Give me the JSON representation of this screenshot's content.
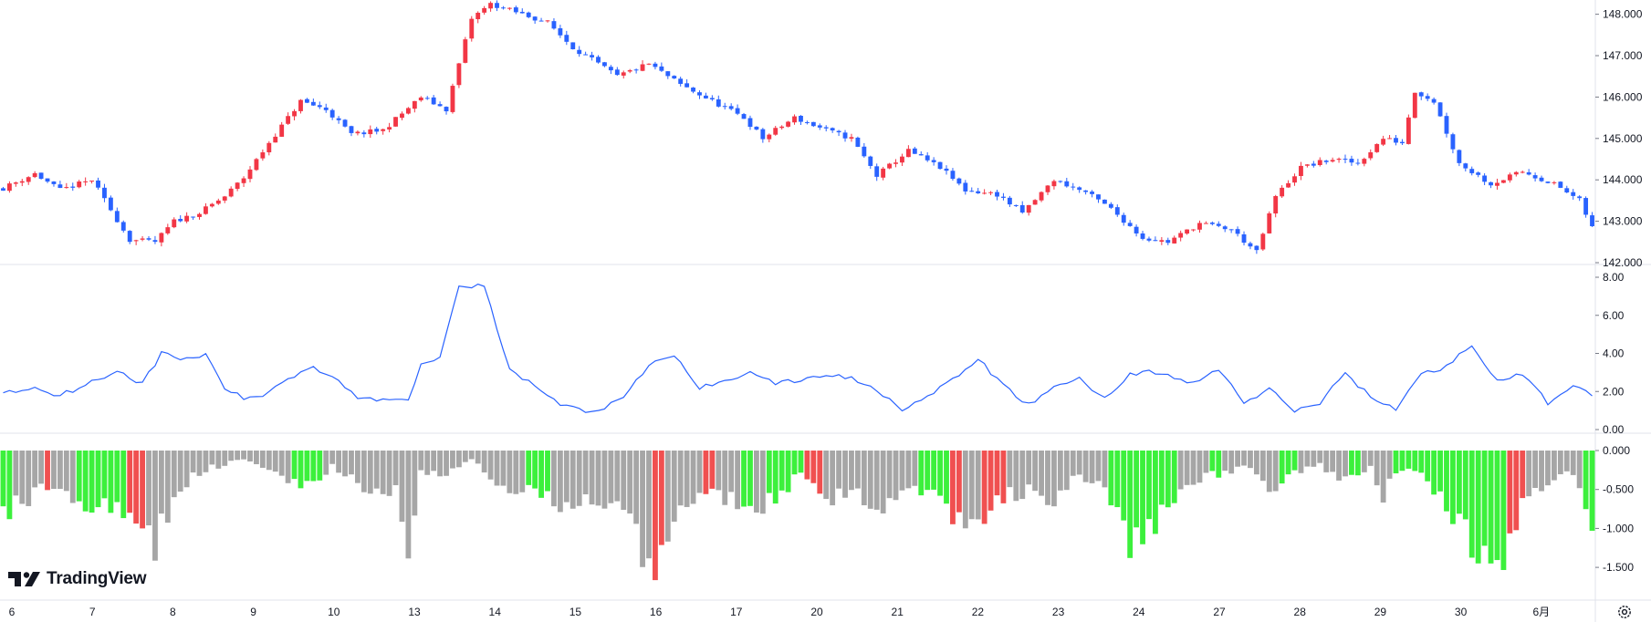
{
  "brand": {
    "name": "TradingView"
  },
  "icons": {
    "logo": "tradingview-logo-icon",
    "settings": "settings-icon"
  },
  "colors": {
    "up": "#f23645",
    "down": "#2962ff",
    "osc_line": "#2962ff",
    "hist_gray": "#a6a6a6",
    "hist_green": "#3cf03c",
    "hist_red": "#f05050",
    "grid": "#e0e3eb",
    "text": "#131722"
  },
  "chart_data": [
    {
      "type": "candlestick",
      "title": "",
      "xlabel": "",
      "ylabel": "",
      "ylim": [
        142.0,
        148.3
      ],
      "yticks": [
        "148.000",
        "147.000",
        "146.000",
        "145.000",
        "144.000",
        "143.000",
        "142.000"
      ],
      "y_axis_position": "right",
      "x_tick_labels": [
        "6",
        "7",
        "8",
        "9",
        "10",
        "13",
        "14",
        "15",
        "16",
        "17",
        "20",
        "21",
        "22",
        "23",
        "24",
        "27",
        "28",
        "29",
        "30",
        "6月"
      ],
      "close_path": [
        [
          0,
          143.8
        ],
        [
          5,
          144.15
        ],
        [
          9,
          143.75
        ],
        [
          14,
          144.0
        ],
        [
          20,
          142.55
        ],
        [
          24,
          142.5
        ],
        [
          27,
          143.0
        ],
        [
          31,
          143.2
        ],
        [
          35,
          143.6
        ],
        [
          38,
          144.05
        ],
        [
          42,
          144.9
        ],
        [
          47,
          145.9
        ],
        [
          51,
          145.7
        ],
        [
          55,
          145.1
        ],
        [
          60,
          145.2
        ],
        [
          66,
          146.0
        ],
        [
          70,
          145.7
        ],
        [
          74,
          147.9
        ],
        [
          77,
          148.25
        ],
        [
          82,
          148.0
        ],
        [
          86,
          147.8
        ],
        [
          90,
          147.2
        ],
        [
          97,
          146.5
        ],
        [
          102,
          146.8
        ],
        [
          107,
          146.3
        ],
        [
          112,
          145.9
        ],
        [
          117,
          145.5
        ],
        [
          120,
          145.0
        ],
        [
          125,
          145.5
        ],
        [
          130,
          145.2
        ],
        [
          134,
          145.0
        ],
        [
          138,
          144.1
        ],
        [
          143,
          144.7
        ],
        [
          148,
          144.3
        ],
        [
          152,
          143.75
        ],
        [
          157,
          143.65
        ],
        [
          161,
          143.2
        ],
        [
          166,
          144.0
        ],
        [
          171,
          143.7
        ],
        [
          175,
          143.3
        ],
        [
          180,
          142.6
        ],
        [
          184,
          142.5
        ],
        [
          189,
          142.95
        ],
        [
          194,
          142.8
        ],
        [
          198,
          142.25
        ],
        [
          201,
          143.6
        ],
        [
          205,
          144.3
        ],
        [
          210,
          144.5
        ],
        [
          214,
          144.4
        ],
        [
          218,
          145.0
        ],
        [
          221,
          144.9
        ],
        [
          223,
          146.15
        ],
        [
          226,
          145.9
        ],
        [
          230,
          144.4
        ],
        [
          235,
          143.9
        ],
        [
          240,
          144.2
        ],
        [
          245,
          143.9
        ],
        [
          249,
          143.5
        ],
        [
          251,
          142.85
        ]
      ]
    },
    {
      "type": "line",
      "title": "",
      "xlabel": "",
      "ylabel": "",
      "ylim": [
        0.0,
        8.0
      ],
      "yticks": [
        "8.00",
        "6.00",
        "4.00",
        "2.00",
        "0.00"
      ],
      "y_axis_position": "right",
      "x": [
        0,
        5,
        9,
        14,
        18,
        22,
        25,
        28,
        32,
        35,
        38,
        41,
        45,
        49,
        53,
        56,
        58,
        60,
        62,
        64,
        66,
        69,
        72,
        76,
        80,
        84,
        88,
        93,
        98,
        102,
        106,
        110,
        114,
        118,
        122,
        126,
        130,
        134,
        138,
        142,
        146,
        150,
        154,
        158,
        162,
        166,
        170,
        174,
        178,
        181,
        184,
        188,
        192,
        196,
        200,
        204,
        208,
        212,
        216,
        220,
        224,
        228,
        232,
        236,
        240,
        244,
        248,
        251
      ],
      "values": [
        1.9,
        2.2,
        1.8,
        2.5,
        3.1,
        2.4,
        4.0,
        3.7,
        3.9,
        2.2,
        1.6,
        1.8,
        2.7,
        3.3,
        2.6,
        1.7,
        1.6,
        1.5,
        1.7,
        1.6,
        3.4,
        3.9,
        7.6,
        7.5,
        3.1,
        2.3,
        1.3,
        0.9,
        1.6,
        3.4,
        3.9,
        2.2,
        2.5,
        3.1,
        2.4,
        2.6,
        2.9,
        2.7,
        2.1,
        1.1,
        1.7,
        2.6,
        3.7,
        2.3,
        1.3,
        2.2,
        2.7,
        1.6,
        2.9,
        3.1,
        2.8,
        2.4,
        3.2,
        1.4,
        2.1,
        1.0,
        1.4,
        3.0,
        1.7,
        1.1,
        2.9,
        3.3,
        4.5,
        2.5,
        2.9,
        1.4,
        2.4,
        1.7
      ]
    },
    {
      "type": "bar",
      "title": "",
      "xlabel": "",
      "ylabel": "",
      "ylim": [
        -1.85,
        0.0
      ],
      "yticks": [
        "0.000",
        "-0.500",
        "-1.000",
        "-1.500"
      ],
      "y_axis_position": "right",
      "x": [
        0,
        6,
        10,
        14,
        18,
        21,
        24,
        27,
        30,
        34,
        38,
        43,
        47,
        52,
        56,
        60,
        62,
        64,
        66,
        70,
        74,
        80,
        84,
        88,
        93,
        97,
        100,
        103,
        106,
        110,
        114,
        118,
        122,
        126,
        130,
        134,
        138,
        142,
        146,
        150,
        154,
        158,
        162,
        166,
        170,
        174,
        176,
        178,
        181,
        184,
        188,
        192,
        196,
        200,
        204,
        208,
        212,
        216,
        218,
        220,
        222,
        226,
        230,
        234,
        236,
        238,
        240,
        244,
        248,
        251
      ],
      "values": [
        -0.8,
        -0.5,
        -0.6,
        -0.7,
        -0.8,
        -1.0,
        -1.2,
        -0.6,
        -0.3,
        -0.2,
        -0.1,
        -0.3,
        -0.5,
        -0.2,
        -0.4,
        -0.6,
        -0.5,
        -1.2,
        -0.3,
        -0.3,
        -0.1,
        -0.6,
        -0.5,
        -0.7,
        -0.6,
        -0.8,
        -1.1,
        -1.6,
        -0.9,
        -0.5,
        -0.6,
        -0.8,
        -0.6,
        -0.3,
        -0.7,
        -0.5,
        -0.8,
        -0.6,
        -0.5,
        -0.8,
        -0.9,
        -0.6,
        -0.5,
        -0.7,
        -0.3,
        -0.5,
        -0.8,
        -1.2,
        -1.0,
        -0.7,
        -0.4,
        -0.3,
        -0.2,
        -0.5,
        -0.3,
        -0.2,
        -0.4,
        -0.2,
        -0.6,
        -0.3,
        -0.2,
        -0.5,
        -1.0,
        -1.4,
        -1.5,
        -1.2,
        -0.6,
        -0.4,
        -0.3,
        -0.9
      ],
      "highlight_green": [
        [
          0,
          1
        ],
        [
          12,
          19
        ],
        [
          46,
          50
        ],
        [
          83,
          86
        ],
        [
          117,
          118
        ],
        [
          121,
          126
        ],
        [
          145,
          149
        ],
        [
          175,
          185
        ],
        [
          191,
          192
        ],
        [
          202,
          204
        ],
        [
          213,
          214
        ],
        [
          220,
          237
        ],
        [
          250,
          251
        ]
      ],
      "highlight_red": [
        [
          7,
          7
        ],
        [
          20,
          22
        ],
        [
          103,
          104
        ],
        [
          111,
          112
        ],
        [
          127,
          129
        ],
        [
          149,
          151
        ],
        [
          155,
          158
        ],
        [
          182,
          183
        ],
        [
          238,
          240
        ]
      ]
    }
  ]
}
